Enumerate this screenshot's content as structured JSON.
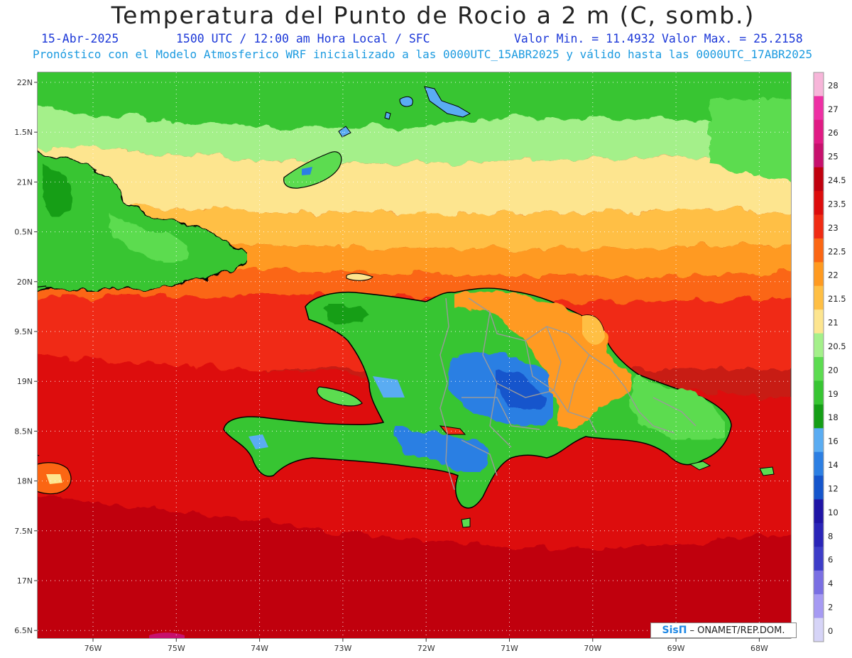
{
  "header": {
    "title": "Temperatura del Punto de Rocio a 2 m (C, somb.)",
    "date": "15-Abr-2025",
    "time": "1500 UTC / 12:00 am Hora Local / SFC",
    "min_label": "Valor Min. = 11.4932",
    "max_label": "Valor Max. = 25.2158",
    "model_line": "Pronóstico con el Modelo Atmosferico WRF inicializado a las 0000UTC_15ABR2025 y válido hasta las  0000UTC_17ABR2025"
  },
  "map": {
    "lat_labels": [
      "22N",
      "1.5N",
      "21N",
      "0.5N",
      "20N",
      "9.5N",
      "19N",
      "8.5N",
      "18N",
      "7.5N",
      "17N",
      "6.5N"
    ],
    "lon_labels": [
      "76W",
      "75W",
      "74W",
      "73W",
      "72W",
      "71W",
      "70W",
      "69W",
      "68W"
    ]
  },
  "colorbar": {
    "levels": [
      {
        "label": "28",
        "color": "#f7b5d9"
      },
      {
        "label": "27",
        "color": "#ee2fa4"
      },
      {
        "label": "26",
        "color": "#e01a84"
      },
      {
        "label": "25",
        "color": "#c7106d"
      },
      {
        "label": "24.5",
        "color": "#c0000e"
      },
      {
        "label": "23.5",
        "color": "#dd0c0c"
      },
      {
        "label": "23",
        "color": "#f02b13"
      },
      {
        "label": "22.5",
        "color": "#fb6613"
      },
      {
        "label": "22",
        "color": "#ff9a20"
      },
      {
        "label": "21.5",
        "color": "#ffbf44"
      },
      {
        "label": "21",
        "color": "#fde58f"
      },
      {
        "label": "20.5",
        "color": "#a4f08a"
      },
      {
        "label": "20",
        "color": "#5cdc50"
      },
      {
        "label": "19",
        "color": "#37c532"
      },
      {
        "label": "18",
        "color": "#159e16"
      },
      {
        "label": "16",
        "color": "#5aacf2"
      },
      {
        "label": "14",
        "color": "#2c7fe3"
      },
      {
        "label": "12",
        "color": "#1555cc"
      },
      {
        "label": "10",
        "color": "#1f14a6"
      },
      {
        "label": "8",
        "color": "#2a24b8"
      },
      {
        "label": "6",
        "color": "#3d3cc8"
      },
      {
        "label": "4",
        "color": "#7a6fe3"
      },
      {
        "label": "2",
        "color": "#a69af3"
      },
      {
        "label": "0",
        "color": "#d6d4f7"
      }
    ]
  },
  "credit": {
    "brand": "SisΠ",
    "text": "– ONAMET/REP.DOM."
  }
}
